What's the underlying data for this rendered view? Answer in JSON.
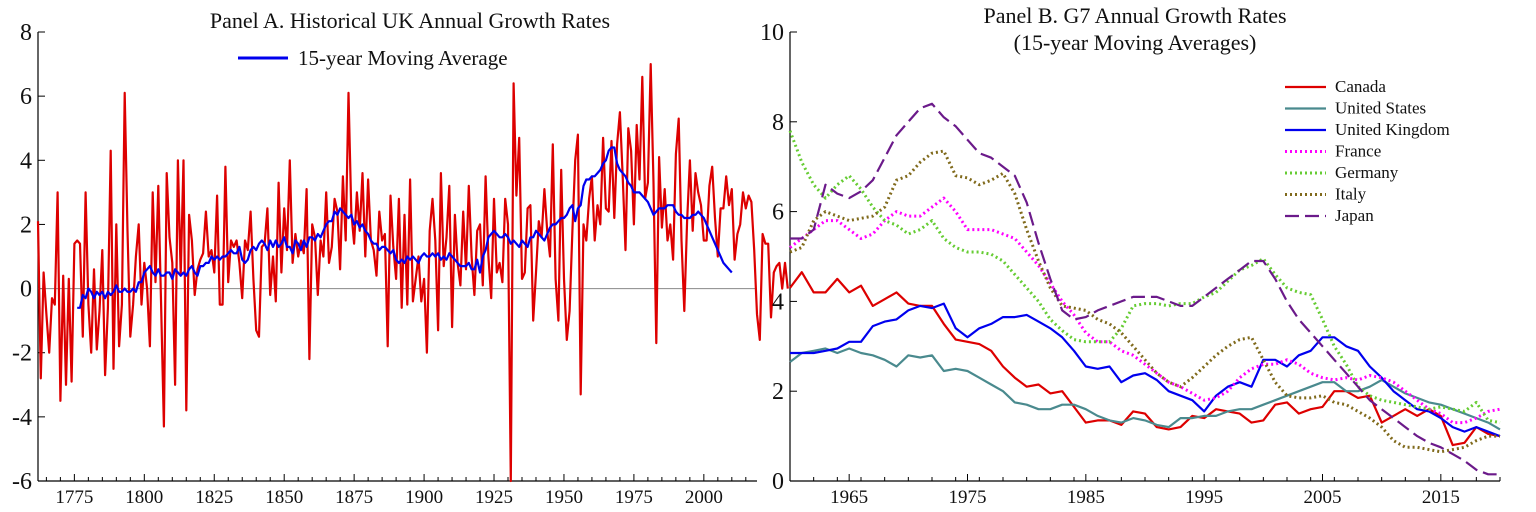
{
  "chart_data": [
    {
      "type": "line",
      "title": "Panel A. Historical UK Annual Growth Rates",
      "xlabel": "",
      "ylabel": "",
      "xlim": [
        1762,
        2019
      ],
      "ylim": [
        -6,
        8
      ],
      "x_ticks": [
        1775,
        1800,
        1825,
        1850,
        1875,
        1900,
        1925,
        1950,
        1975,
        2000
      ],
      "y_ticks": [
        -6,
        -4,
        -2,
        0,
        2,
        4,
        6,
        8
      ],
      "zero_line": true,
      "grid": false,
      "legend": {
        "position": "top-center"
      },
      "series": [
        {
          "name": "",
          "color": "#dd0000",
          "x_start": 1762,
          "values": [
            2.1,
            -2.8,
            0.5,
            -0.8,
            -2.0,
            -0.3,
            -0.5,
            3.0,
            -3.5,
            0.4,
            -3.0,
            0.3,
            -2.9,
            1.4,
            1.5,
            1.4,
            -1.5,
            3.0,
            -0.5,
            -2.0,
            0.6,
            -1.9,
            -0.7,
            1.2,
            -2.7,
            -0.6,
            4.3,
            -2.5,
            2.0,
            -1.8,
            -0.5,
            6.1,
            1.8,
            -1.5,
            -0.5,
            1.0,
            2.0,
            -0.5,
            0.8,
            0.0,
            -1.8,
            3.0,
            0.2,
            3.2,
            -0.5,
            -4.3,
            3.6,
            1.6,
            0.8,
            -3.0,
            4.0,
            0.4,
            4.0,
            -3.8,
            2.3,
            1.5,
            -0.2,
            0.6,
            0.9,
            1.1,
            2.4,
            1.0,
            1.2,
            0.5,
            2.9,
            -0.5,
            -0.5,
            3.8,
            0.2,
            1.5,
            1.3,
            1.5,
            0.8,
            -0.3,
            1.5,
            1.2,
            2.4,
            0.3,
            -1.3,
            -1.5,
            1.3,
            1.4,
            2.5,
            -0.2,
            1.0,
            -0.4,
            3.3,
            0.5,
            2.5,
            1.2,
            4.0,
            0.8,
            1.7,
            1.0,
            1.5,
            1.1,
            3.1,
            -2.2,
            2.0,
            1.6,
            -0.2,
            1.5,
            1.0,
            3.0,
            0.8,
            1.3,
            2.8,
            2.4,
            0.6,
            3.5,
            1.5,
            6.1,
            2.4,
            1.4,
            3.0,
            1.8,
            3.6,
            1.0,
            3.4,
            1.5,
            1.2,
            0.4,
            2.4,
            1.5,
            1.7,
            -1.8,
            2.9,
            1.3,
            0.3,
            2.8,
            -0.6,
            2.3,
            -0.5,
            3.4,
            -0.4,
            0.3,
            1.0,
            -0.4,
            0.3,
            -2.0,
            1.8,
            2.8,
            1.5,
            -1.3,
            3.6,
            0.7,
            1.6,
            3.2,
            -1.2,
            2.3,
            0.8,
            0.1,
            2.4,
            0.6,
            3.2,
            1.0,
            -0.2,
            1.8,
            2.0,
            0.1,
            3.5,
            1.0,
            -0.3,
            2.8,
            0.5,
            0.8,
            0.2,
            2.8,
            2.0,
            -6.0,
            6.4,
            2.9,
            4.7,
            0.3,
            0.5,
            2.5,
            2.6,
            -1.0,
            0.5,
            2.1,
            1.6,
            3.1,
            1.8,
            1.0,
            4.5,
            0.3,
            -1.0,
            3.7,
            0.3,
            -1.6,
            -0.7,
            1.8,
            4.0,
            4.8,
            -3.3,
            2.0,
            1.5,
            2.8,
            3.5,
            1.5,
            2.6,
            2.0,
            4.7,
            2.5,
            2.4,
            4.6,
            2.2,
            4.5,
            5.5,
            3.5,
            1.2,
            5.0,
            4.3,
            2.0,
            5.1,
            3.4,
            6.6,
            2.8,
            3.3,
            7.0,
            3.3,
            -1.7,
            4.1,
            1.9,
            3.1,
            1.5,
            2.0,
            0.9,
            4.2,
            5.3,
            1.5,
            -0.7,
            2.1,
            4.0,
            1.8,
            3.6,
            3.0,
            2.6,
            1.5,
            1.5,
            3.2,
            3.8,
            2.2,
            1.0,
            2.5,
            2.5,
            3.5,
            2.6,
            3.1,
            0.9,
            1.7,
            2.0,
            3.0,
            2.5,
            2.9,
            2.7,
            1.2,
            -0.8,
            -1.6,
            1.7,
            1.4,
            1.4,
            -0.9,
            0.5,
            0.7,
            0.8,
            0.0,
            0.8,
            0.0
          ]
        },
        {
          "name": "15-year Moving Average",
          "color": "#0000ee",
          "x_start": 1776,
          "values": [
            -0.6,
            -0.6,
            -0.2,
            -0.3,
            0.0,
            -0.1,
            -0.3,
            -0.1,
            -0.2,
            -0.1,
            -0.3,
            -0.1,
            -0.2,
            -0.1,
            0.1,
            -0.1,
            -0.1,
            0.0,
            -0.1,
            -0.1,
            0.0,
            -0.1,
            0.2,
            0.2,
            0.5,
            0.6,
            0.7,
            0.5,
            0.4,
            0.6,
            0.4,
            0.4,
            0.5,
            0.5,
            0.3,
            0.6,
            0.5,
            0.4,
            0.5,
            0.4,
            0.6,
            0.7,
            0.5,
            0.4,
            0.7,
            0.7,
            0.8,
            0.8,
            1.0,
            0.9,
            1.0,
            0.9,
            1.0,
            1.0,
            1.1,
            1.2,
            1.1,
            1.1,
            1.3,
            0.9,
            0.8,
            0.9,
            1.2,
            1.3,
            1.2,
            1.4,
            1.5,
            1.4,
            1.2,
            1.5,
            1.3,
            1.5,
            1.3,
            1.4,
            1.6,
            1.3,
            1.3,
            1.1,
            1.5,
            1.4,
            1.2,
            1.5,
            1.3,
            1.6,
            1.6,
            1.5,
            1.7,
            1.6,
            1.8,
            2.0,
            2.1,
            2.1,
            2.4,
            2.3,
            2.5,
            2.4,
            2.3,
            2.2,
            2.3,
            2.0,
            2.1,
            1.9,
            2.0,
            1.8,
            1.7,
            1.5,
            1.4,
            1.4,
            1.2,
            1.3,
            1.3,
            1.2,
            1.1,
            1.2,
            0.9,
            0.8,
            0.9,
            0.8,
            1.0,
            0.9,
            1.0,
            0.9,
            0.8,
            1.0,
            1.1,
            1.0,
            1.0,
            1.1,
            1.0,
            1.1,
            0.9,
            1.0,
            0.9,
            1.1,
            1.0,
            0.9,
            0.8,
            0.7,
            0.7,
            0.7,
            0.8,
            0.6,
            0.6,
            0.9,
            0.5,
            1.0,
            1.2,
            1.6,
            1.7,
            1.8,
            1.7,
            1.6,
            1.6,
            1.7,
            1.6,
            1.4,
            1.5,
            1.4,
            1.3,
            1.5,
            1.4,
            1.3,
            1.6,
            1.6,
            1.8,
            1.7,
            1.6,
            1.5,
            1.7,
            1.9,
            2.0,
            2.0,
            2.1,
            2.2,
            2.2,
            2.3,
            2.5,
            2.6,
            2.1,
            2.5,
            2.6,
            3.2,
            3.4,
            3.4,
            3.5,
            3.5,
            3.6,
            3.7,
            3.9,
            4.0,
            4.3,
            4.4,
            4.4,
            3.9,
            3.7,
            3.6,
            3.5,
            3.3,
            3.2,
            3.0,
            3.0,
            3.0,
            2.9,
            2.8,
            2.7,
            2.5,
            2.3,
            2.4,
            2.5,
            2.5,
            2.5,
            2.6,
            2.6,
            2.6,
            2.4,
            2.3,
            2.3,
            2.2,
            2.2,
            2.2,
            2.3,
            2.3,
            2.4,
            2.3,
            2.2,
            2.0,
            1.8,
            1.6,
            1.4,
            1.2,
            1.0,
            0.8,
            0.7,
            0.6,
            0.5
          ]
        }
      ]
    },
    {
      "type": "line",
      "title": "Panel B. G7 Annual Growth Rates",
      "subtitle": "(15-year Moving Averages)",
      "xlabel": "",
      "ylabel": "",
      "xlim": [
        1960,
        2020
      ],
      "ylim": [
        0,
        10
      ],
      "x_ticks": [
        1965,
        1975,
        1985,
        1995,
        2005,
        2015
      ],
      "y_ticks": [
        0,
        2,
        4,
        6,
        8,
        10
      ],
      "grid": false,
      "legend": {
        "position": "top-right"
      },
      "series": [
        {
          "name": "Canada",
          "color": "#dd0000",
          "style": "solid",
          "x_start": 1960,
          "values": [
            4.3,
            4.65,
            4.2,
            4.2,
            4.5,
            4.2,
            4.35,
            3.9,
            4.05,
            4.2,
            3.95,
            3.9,
            3.9,
            3.5,
            3.15,
            3.1,
            3.05,
            2.9,
            2.55,
            2.3,
            2.1,
            2.15,
            1.95,
            2.0,
            1.65,
            1.3,
            1.35,
            1.35,
            1.25,
            1.55,
            1.5,
            1.2,
            1.15,
            1.2,
            1.45,
            1.4,
            1.6,
            1.55,
            1.5,
            1.3,
            1.35,
            1.7,
            1.75,
            1.5,
            1.6,
            1.65,
            2.0,
            2.0,
            1.85,
            1.9,
            1.3,
            1.45,
            1.6,
            1.45,
            1.6,
            1.45,
            0.8,
            0.85,
            1.2,
            1.05,
            1.0
          ]
        },
        {
          "name": "United States",
          "color": "#4a8a8e",
          "style": "solid",
          "x_start": 1960,
          "values": [
            2.65,
            2.85,
            2.9,
            2.95,
            2.85,
            2.95,
            2.85,
            2.8,
            2.7,
            2.55,
            2.8,
            2.75,
            2.8,
            2.45,
            2.5,
            2.45,
            2.3,
            2.15,
            2.0,
            1.75,
            1.7,
            1.6,
            1.6,
            1.7,
            1.7,
            1.6,
            1.45,
            1.35,
            1.3,
            1.4,
            1.35,
            1.25,
            1.2,
            1.4,
            1.4,
            1.45,
            1.45,
            1.55,
            1.6,
            1.6,
            1.7,
            1.8,
            1.9,
            2.0,
            2.1,
            2.2,
            2.2,
            2.0,
            2.0,
            2.1,
            2.25,
            2.1,
            1.95,
            1.85,
            1.75,
            1.7,
            1.6,
            1.5,
            1.4,
            1.3,
            1.15
          ]
        },
        {
          "name": "United Kingdom",
          "color": "#0000ee",
          "style": "solid",
          "x_start": 1960,
          "values": [
            2.85,
            2.85,
            2.85,
            2.9,
            2.95,
            3.1,
            3.1,
            3.45,
            3.55,
            3.6,
            3.8,
            3.9,
            3.85,
            3.95,
            3.4,
            3.2,
            3.4,
            3.5,
            3.65,
            3.65,
            3.7,
            3.55,
            3.4,
            3.2,
            2.9,
            2.55,
            2.5,
            2.55,
            2.2,
            2.35,
            2.4,
            2.25,
            2.0,
            1.9,
            1.8,
            1.55,
            1.9,
            2.1,
            2.2,
            2.1,
            2.7,
            2.7,
            2.55,
            2.8,
            2.9,
            3.2,
            3.2,
            3.0,
            2.9,
            2.55,
            2.3,
            2.0,
            1.8,
            1.6,
            1.55,
            1.4,
            1.2,
            1.1,
            1.2,
            1.1,
            1.0
          ]
        },
        {
          "name": "France",
          "color": "#ff00ff",
          "style": "dotted",
          "x_start": 1960,
          "values": [
            5.2,
            5.4,
            5.6,
            5.8,
            5.8,
            5.6,
            5.4,
            5.5,
            5.8,
            6.0,
            5.9,
            5.9,
            6.1,
            6.3,
            6.0,
            5.6,
            5.6,
            5.6,
            5.5,
            5.4,
            5.1,
            4.8,
            4.4,
            4.0,
            3.7,
            3.3,
            3.1,
            3.1,
            2.9,
            2.8,
            2.6,
            2.4,
            2.2,
            2.1,
            1.95,
            1.8,
            1.85,
            2.0,
            2.3,
            2.5,
            2.6,
            2.6,
            2.7,
            2.6,
            2.4,
            2.3,
            2.25,
            2.3,
            2.25,
            2.35,
            2.3,
            2.2,
            2.0,
            1.8,
            1.6,
            1.5,
            1.3,
            1.3,
            1.4,
            1.55,
            1.6
          ]
        },
        {
          "name": "Germany",
          "color": "#66cc33",
          "style": "dotted",
          "x_start": 1960,
          "values": [
            7.8,
            7.1,
            6.6,
            6.3,
            6.6,
            6.8,
            6.5,
            6.1,
            5.8,
            5.7,
            5.5,
            5.6,
            5.8,
            5.4,
            5.2,
            5.1,
            5.1,
            5.05,
            4.9,
            4.6,
            4.3,
            4.0,
            3.6,
            3.35,
            3.15,
            3.1,
            3.1,
            3.1,
            3.4,
            3.9,
            3.95,
            3.95,
            3.9,
            3.95,
            3.95,
            4.1,
            4.2,
            4.45,
            4.7,
            4.8,
            4.95,
            4.6,
            4.3,
            4.2,
            4.15,
            3.6,
            3.0,
            2.6,
            2.1,
            1.9,
            1.8,
            1.75,
            1.7,
            1.65,
            1.6,
            1.65,
            1.6,
            1.55,
            1.75,
            1.35,
            1.3
          ]
        },
        {
          "name": "Italy",
          "color": "#806a1c",
          "style": "dotted",
          "x_start": 1960,
          "values": [
            5.1,
            5.2,
            5.8,
            6.0,
            5.9,
            5.8,
            5.85,
            5.9,
            6.1,
            6.7,
            6.8,
            7.1,
            7.3,
            7.35,
            6.8,
            6.75,
            6.6,
            6.7,
            6.85,
            6.4,
            5.6,
            4.9,
            4.3,
            3.9,
            3.85,
            3.8,
            3.6,
            3.5,
            3.3,
            3.0,
            2.7,
            2.4,
            2.2,
            2.1,
            2.3,
            2.55,
            2.8,
            3.0,
            3.15,
            3.2,
            2.7,
            2.2,
            1.9,
            1.85,
            1.85,
            1.9,
            1.75,
            1.7,
            1.55,
            1.4,
            1.2,
            0.9,
            0.75,
            0.75,
            0.7,
            0.65,
            0.7,
            0.75,
            0.9,
            1.0,
            1.0
          ]
        },
        {
          "name": "Japan",
          "color": "#6b1a8a",
          "style": "dashed",
          "x_start": 1960,
          "values": [
            5.4,
            5.4,
            5.6,
            6.6,
            6.4,
            6.3,
            6.45,
            6.7,
            7.2,
            7.7,
            8.0,
            8.3,
            8.4,
            8.1,
            7.9,
            7.6,
            7.3,
            7.2,
            7.0,
            6.8,
            6.2,
            5.3,
            4.5,
            3.8,
            3.6,
            3.65,
            3.8,
            3.9,
            4.0,
            4.1,
            4.1,
            4.1,
            4.0,
            3.9,
            3.9,
            4.1,
            4.3,
            4.5,
            4.7,
            4.9,
            4.9,
            4.5,
            4.0,
            3.6,
            3.3,
            3.0,
            2.7,
            2.4,
            2.1,
            1.8,
            1.6,
            1.4,
            1.2,
            1.0,
            0.85,
            0.75,
            0.6,
            0.45,
            0.25,
            0.15,
            0.15
          ]
        }
      ]
    }
  ]
}
